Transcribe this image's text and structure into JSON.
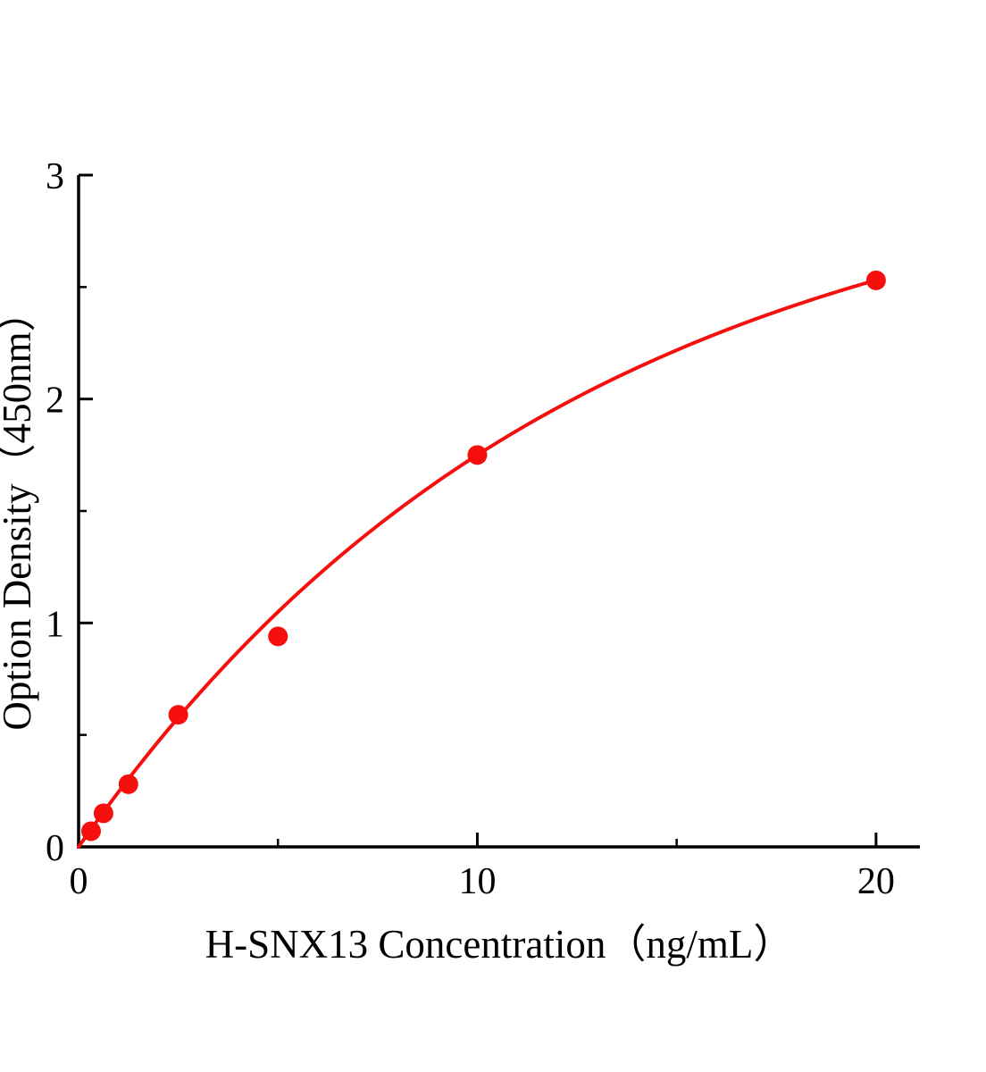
{
  "page": {
    "background": "#ffffff"
  },
  "chart_data": {
    "type": "scatter",
    "title": "",
    "xlabel": "H-SNX13 Concentration（ng/mL）",
    "ylabel": "Option Density（450nm）",
    "x": [
      0.313,
      0.625,
      1.25,
      2.5,
      5,
      10,
      20
    ],
    "y": [
      0.07,
      0.15,
      0.28,
      0.59,
      0.94,
      1.75,
      2.53
    ],
    "xlim": [
      0,
      21.1
    ],
    "ylim": [
      0,
      3
    ],
    "x_major_ticks": [
      0,
      10,
      20
    ],
    "x_minor_ticks": [
      5,
      15
    ],
    "y_major_ticks": [
      0,
      1,
      2,
      3
    ],
    "y_minor_ticks": [
      0.5,
      1.5,
      2.5
    ],
    "curve_fit": {
      "type": "exponential_saturation",
      "A": 3.16,
      "k": 0.0807,
      "x_start": 0,
      "x_end": 20
    },
    "point_color": "#f5100e",
    "line_color": "#f5100e",
    "axis_color": "#000000",
    "grid": false,
    "legend": null
  }
}
